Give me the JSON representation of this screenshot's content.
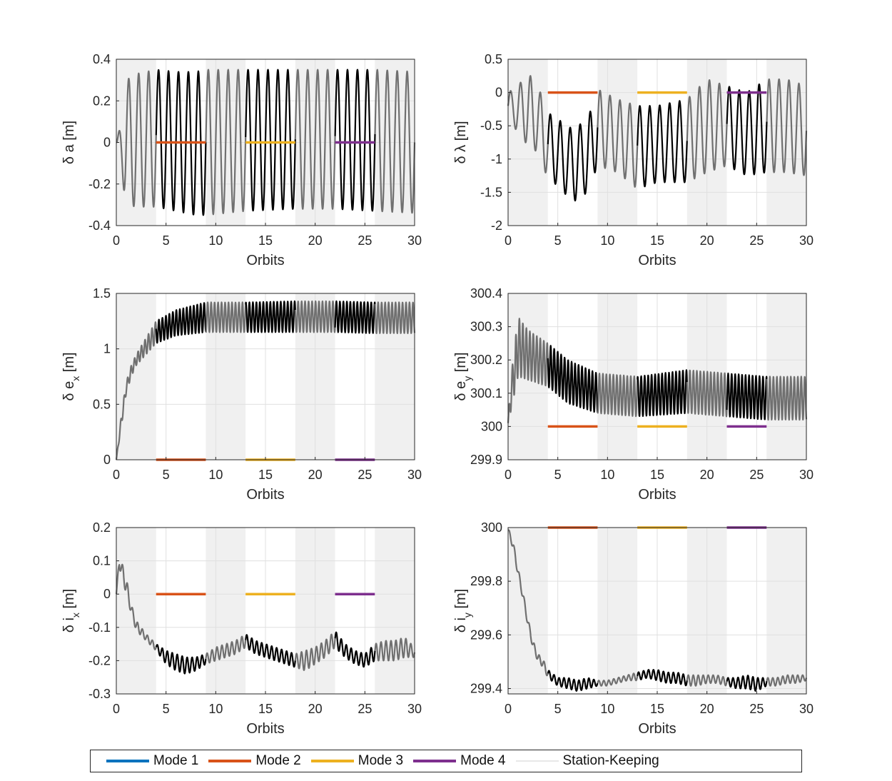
{
  "colors": {
    "background_band": "#f0f0f0",
    "grid": "#e0e0e0",
    "axis": "#262626",
    "active": "#000000",
    "inactive": "#707070"
  },
  "legend": {
    "items": [
      {
        "label": "Mode 1",
        "color": "#0072bd"
      },
      {
        "label": "Mode 2",
        "color": "#d95319"
      },
      {
        "label": "Mode 3",
        "color": "#edb120"
      },
      {
        "label": "Mode 4",
        "color": "#7e2f8e"
      },
      {
        "label": "Station-Keeping",
        "color": "#e8e8e8"
      }
    ]
  },
  "shaded_intervals": [
    [
      0,
      4
    ],
    [
      9,
      13
    ],
    [
      18,
      22
    ],
    [
      26,
      30
    ]
  ],
  "active_intervals": [
    [
      4,
      9
    ],
    [
      13,
      18
    ],
    [
      22,
      26
    ]
  ],
  "chart_data": [
    {
      "type": "line",
      "ylabel_html": "δ a [m]",
      "xlabel": "Orbits",
      "xlim": [
        0,
        30
      ],
      "ylim": [
        -0.4,
        0.4
      ],
      "xticks": [
        "0",
        "5",
        "10",
        "15",
        "20",
        "25",
        "30"
      ],
      "yticks": [
        "-0.4",
        "-0.2",
        "0",
        "0.2",
        "0.4"
      ],
      "mode_targets": [
        {
          "mode": "Mode 2",
          "x": [
            4,
            9
          ],
          "y": 0
        },
        {
          "mode": "Mode 3",
          "x": [
            13,
            18
          ],
          "y": 0
        },
        {
          "mode": "Mode 4",
          "x": [
            22,
            26
          ],
          "y": 0
        }
      ],
      "series": [
        {
          "x": [
            0,
            0.5,
            1,
            2,
            4,
            6,
            8,
            9,
            13,
            18,
            22,
            26,
            30
          ],
          "upper": [
            0,
            0.1,
            0.3,
            0.33,
            0.35,
            0.34,
            0.34,
            0.35,
            0.35,
            0.35,
            0.35,
            0.35,
            0.34
          ],
          "lower": [
            0,
            -0.15,
            -0.3,
            -0.31,
            -0.31,
            -0.33,
            -0.35,
            -0.35,
            -0.33,
            -0.32,
            -0.32,
            -0.33,
            -0.34
          ],
          "oscillation_period": 1
        }
      ]
    },
    {
      "type": "line",
      "ylabel_html": "δ λ [m]",
      "xlabel": "Orbits",
      "xlim": [
        0,
        30
      ],
      "ylim": [
        -2,
        0.5
      ],
      "xticks": [
        "0",
        "5",
        "10",
        "15",
        "20",
        "25",
        "30"
      ],
      "yticks": [
        "-2",
        "-1.5",
        "-1",
        "-0.5",
        "0",
        "0.5"
      ],
      "mode_targets": [
        {
          "mode": "Mode 2",
          "x": [
            4,
            9
          ],
          "y": 0
        },
        {
          "mode": "Mode 3",
          "x": [
            13,
            18
          ],
          "y": 0
        },
        {
          "mode": "Mode 4",
          "x": [
            22,
            26
          ],
          "y": 0
        }
      ],
      "series": [
        {
          "x": [
            0,
            1,
            2,
            3,
            4,
            5,
            6.5,
            8,
            9,
            11,
            13,
            15,
            18,
            20,
            22,
            24,
            26,
            28,
            30
          ],
          "upper": [
            0,
            0.1,
            0.3,
            0.1,
            -0.3,
            -0.4,
            -0.55,
            -0.4,
            0.05,
            -0.1,
            -0.2,
            -0.2,
            -0.1,
            0.2,
            0.1,
            0.0,
            0.2,
            0.2,
            0.1
          ],
          "lower": [
            -0.4,
            -0.6,
            -0.8,
            -0.9,
            -1.3,
            -1.4,
            -1.65,
            -1.5,
            -1.1,
            -1.2,
            -1.45,
            -1.35,
            -1.35,
            -1.2,
            -1.1,
            -1.25,
            -1.2,
            -1.2,
            -1.25
          ],
          "oscillation_period": 1
        }
      ]
    },
    {
      "type": "line",
      "ylabel_html": "δ e<sub>x</sub> [m]",
      "ylabel_main": "δ e",
      "ylabel_sub": "x",
      "ylabel_tail": " [m]",
      "xlabel": "Orbits",
      "xlim": [
        0,
        30
      ],
      "ylim": [
        0,
        1.5
      ],
      "xticks": [
        "0",
        "5",
        "10",
        "15",
        "20",
        "25",
        "30"
      ],
      "yticks": [
        "0",
        "0.5",
        "1",
        "1.5"
      ],
      "mode_targets": [
        {
          "mode": "Mode 2",
          "x": [
            4,
            9
          ],
          "y": 0
        },
        {
          "mode": "Mode 3",
          "x": [
            13,
            18
          ],
          "y": 0
        },
        {
          "mode": "Mode 4",
          "x": [
            22,
            26
          ],
          "y": 0
        }
      ],
      "series": [
        {
          "x": [
            0,
            0.5,
            1,
            1.5,
            2,
            3,
            4,
            6,
            9,
            13,
            18,
            22,
            26,
            30
          ],
          "upper": [
            0,
            0.4,
            0.7,
            0.85,
            0.95,
            1.1,
            1.25,
            1.35,
            1.42,
            1.42,
            1.43,
            1.43,
            1.42,
            1.42
          ],
          "lower": [
            0,
            0.3,
            0.6,
            0.75,
            0.85,
            0.95,
            1.05,
            1.12,
            1.15,
            1.15,
            1.15,
            1.15,
            1.14,
            1.14
          ],
          "oscillation_period": 0.35
        }
      ]
    },
    {
      "type": "line",
      "ylabel_main": "δ e",
      "ylabel_sub": "y",
      "ylabel_tail": " [m]",
      "xlabel": "Orbits",
      "xlim": [
        0,
        30
      ],
      "ylim": [
        299.9,
        300.4
      ],
      "xticks": [
        "0",
        "5",
        "10",
        "15",
        "20",
        "25",
        "30"
      ],
      "yticks": [
        "299.9",
        "300",
        "300.1",
        "300.2",
        "300.3",
        "300.4"
      ],
      "mode_targets": [
        {
          "mode": "Mode 2",
          "x": [
            4,
            9
          ],
          "y": 300
        },
        {
          "mode": "Mode 3",
          "x": [
            13,
            18
          ],
          "y": 300
        },
        {
          "mode": "Mode 4",
          "x": [
            22,
            26
          ],
          "y": 300
        }
      ],
      "series": [
        {
          "x": [
            0,
            0.3,
            1,
            2,
            4,
            6,
            9,
            13,
            18,
            22,
            26,
            30
          ],
          "upper": [
            300.02,
            300.15,
            300.33,
            300.29,
            300.25,
            300.2,
            300.16,
            300.15,
            300.17,
            300.16,
            300.15,
            300.15
          ],
          "lower": [
            300.0,
            300.05,
            300.15,
            300.14,
            300.12,
            300.07,
            300.04,
            300.03,
            300.04,
            300.03,
            300.02,
            300.02
          ],
          "oscillation_period": 0.35
        }
      ]
    },
    {
      "type": "line",
      "ylabel_main": "δ i",
      "ylabel_sub": "x",
      "ylabel_tail": " [m]",
      "xlabel": "Orbits",
      "xlim": [
        0,
        30
      ],
      "ylim": [
        -0.3,
        0.2
      ],
      "xticks": [
        "0",
        "5",
        "10",
        "15",
        "20",
        "25",
        "30"
      ],
      "yticks": [
        "-0.3",
        "-0.2",
        "-0.1",
        "0",
        "0.1",
        "0.2"
      ],
      "mode_targets": [
        {
          "mode": "Mode 2",
          "x": [
            4,
            9
          ],
          "y": 0
        },
        {
          "mode": "Mode 3",
          "x": [
            13,
            18
          ],
          "y": 0
        },
        {
          "mode": "Mode 4",
          "x": [
            22,
            26
          ],
          "y": 0
        }
      ],
      "series": [
        {
          "x": [
            0,
            0.3,
            1,
            1.5,
            2,
            3,
            4,
            5,
            6,
            7,
            8,
            9,
            10,
            11,
            12,
            13,
            14,
            15,
            16,
            17,
            18,
            19,
            20,
            21,
            22,
            23,
            24,
            25,
            26,
            27,
            28,
            29,
            30
          ],
          "upper": [
            0.0,
            0.12,
            0.05,
            -0.03,
            -0.08,
            -0.12,
            -0.15,
            -0.17,
            -0.18,
            -0.19,
            -0.19,
            -0.18,
            -0.16,
            -0.15,
            -0.14,
            -0.12,
            -0.14,
            -0.15,
            -0.16,
            -0.17,
            -0.18,
            -0.17,
            -0.16,
            -0.14,
            -0.11,
            -0.15,
            -0.17,
            -0.18,
            -0.15,
            -0.14,
            -0.14,
            -0.13,
            -0.16
          ],
          "lower": [
            0.0,
            0.08,
            0.0,
            -0.06,
            -0.11,
            -0.14,
            -0.17,
            -0.21,
            -0.23,
            -0.24,
            -0.23,
            -0.21,
            -0.2,
            -0.19,
            -0.18,
            -0.16,
            -0.18,
            -0.19,
            -0.2,
            -0.21,
            -0.22,
            -0.23,
            -0.21,
            -0.19,
            -0.16,
            -0.19,
            -0.21,
            -0.22,
            -0.2,
            -0.2,
            -0.2,
            -0.19,
            -0.19
          ],
          "oscillation_period": 0.5
        }
      ]
    },
    {
      "type": "line",
      "ylabel_main": "δ i",
      "ylabel_sub": "y",
      "ylabel_tail": " [m]",
      "xlabel": "Orbits",
      "xlim": [
        0,
        30
      ],
      "ylim": [
        299.38,
        300
      ],
      "xticks": [
        "0",
        "5",
        "10",
        "15",
        "20",
        "25",
        "30"
      ],
      "yticks": [
        "299.4",
        "299.6",
        "299.8",
        "300"
      ],
      "mode_targets": [
        {
          "mode": "Mode 2",
          "x": [
            4,
            9
          ],
          "y": 300
        },
        {
          "mode": "Mode 3",
          "x": [
            13,
            18
          ],
          "y": 300
        },
        {
          "mode": "Mode 4",
          "x": [
            22,
            26
          ],
          "y": 300
        }
      ],
      "series": [
        {
          "x": [
            0,
            0.5,
            1,
            1.5,
            2,
            2.5,
            3,
            3.5,
            4,
            5,
            6,
            7,
            8,
            9,
            10,
            11,
            12,
            13,
            14,
            15,
            16,
            17,
            18,
            19,
            20,
            21,
            22,
            23,
            24,
            25,
            26,
            27,
            28,
            29,
            30
          ],
          "upper": [
            300.0,
            299.95,
            299.85,
            299.76,
            299.66,
            299.58,
            299.53,
            299.51,
            299.47,
            299.44,
            299.44,
            299.43,
            299.44,
            299.43,
            299.43,
            299.44,
            299.45,
            299.46,
            299.47,
            299.47,
            299.46,
            299.46,
            299.45,
            299.45,
            299.45,
            299.45,
            299.44,
            299.44,
            299.45,
            299.44,
            299.44,
            299.44,
            299.45,
            299.45,
            299.45
          ],
          "lower": [
            299.98,
            299.92,
            299.82,
            299.73,
            299.63,
            299.55,
            299.5,
            299.48,
            299.44,
            299.41,
            299.4,
            299.39,
            299.4,
            299.41,
            299.41,
            299.42,
            299.43,
            299.43,
            299.44,
            299.43,
            299.42,
            299.42,
            299.41,
            299.41,
            299.42,
            299.42,
            299.41,
            299.4,
            299.4,
            299.39,
            299.41,
            299.41,
            299.42,
            299.42,
            299.43
          ],
          "oscillation_period": 0.5
        }
      ]
    }
  ]
}
